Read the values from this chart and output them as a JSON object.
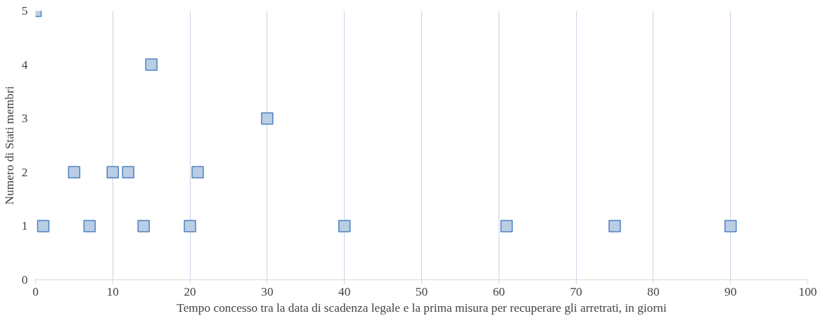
{
  "chart_data": {
    "type": "scatter",
    "xlabel": "Tempo concesso tra la data di scadenza legale e la prima misura per recuperare gli arretrati, in giorni",
    "ylabel": "Numero di Stati membri",
    "x": [
      0,
      1,
      5,
      7,
      10,
      12,
      14,
      15,
      20,
      21,
      30,
      40,
      61,
      75,
      90
    ],
    "series": [
      {
        "color": "#b9cde5",
        "values": [
          5,
          1,
          2,
          1,
          2,
          2,
          1,
          4,
          1,
          2,
          3,
          1,
          1,
          1,
          1
        ]
      }
    ],
    "xlim": [
      0,
      100
    ],
    "xticks": [
      0,
      10,
      20,
      30,
      40,
      50,
      60,
      70,
      80,
      90,
      100
    ],
    "ylim": [
      0,
      5
    ],
    "yticks": [
      0,
      1,
      2,
      3,
      4,
      5
    ],
    "grid": "x",
    "marker": "square"
  }
}
